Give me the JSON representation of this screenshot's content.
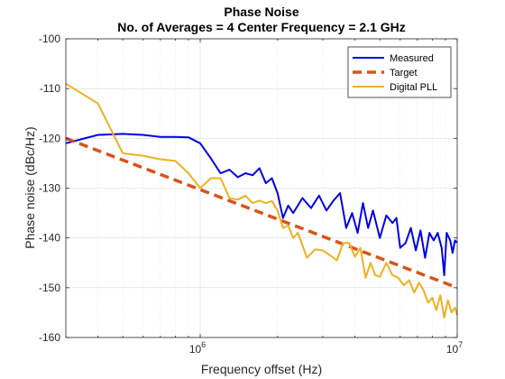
{
  "chart_data": {
    "type": "line",
    "title": "Phase Noise",
    "subtitle": "No. of Averages = 4 Center Frequency = 2.1 GHz",
    "xlabel": "Frequency offset (Hz)",
    "ylabel": "Phase noise (dBc/Hz)",
    "xscale": "log",
    "xlim": [
      300000,
      10000000
    ],
    "ylim": [
      -160,
      -100
    ],
    "yticks": [
      -160,
      -150,
      -140,
      -130,
      -120,
      -110,
      -100
    ],
    "ytick_labels": [
      "-160",
      "-150",
      "-140",
      "-130",
      "-120",
      "-110",
      "-100"
    ],
    "xticks": [
      1000000,
      10000000
    ],
    "xtick_labels": [
      {
        "base": "10",
        "exp": "6"
      },
      {
        "base": "10",
        "exp": "7"
      }
    ],
    "grid": true,
    "legend_position": "top-right",
    "series": [
      {
        "name": "Measured",
        "color": "#0000e6",
        "style": "solid",
        "points": [
          [
            300000,
            -121
          ],
          [
            400000,
            -119.3
          ],
          [
            500000,
            -119.1
          ],
          [
            600000,
            -119.3
          ],
          [
            700000,
            -119.7
          ],
          [
            800000,
            -119.7
          ],
          [
            900000,
            -119.8
          ],
          [
            1000000,
            -121
          ],
          [
            1100000,
            -124
          ],
          [
            1200000,
            -127
          ],
          [
            1300000,
            -126.3
          ],
          [
            1400000,
            -127.8
          ],
          [
            1500000,
            -127
          ],
          [
            1600000,
            -127.4
          ],
          [
            1700000,
            -126
          ],
          [
            1800000,
            -129
          ],
          [
            1900000,
            -128
          ],
          [
            2000000,
            -131
          ],
          [
            2100000,
            -136
          ],
          [
            2200000,
            -133.5
          ],
          [
            2300000,
            -135
          ],
          [
            2500000,
            -132
          ],
          [
            2700000,
            -134
          ],
          [
            2900000,
            -131.5
          ],
          [
            3100000,
            -134.5
          ],
          [
            3300000,
            -132.5
          ],
          [
            3500000,
            -131
          ],
          [
            3700000,
            -138
          ],
          [
            3900000,
            -135
          ],
          [
            4100000,
            -139
          ],
          [
            4300000,
            -133
          ],
          [
            4500000,
            -138
          ],
          [
            4700000,
            -134.5
          ],
          [
            5000000,
            -140
          ],
          [
            5300000,
            -135.5
          ],
          [
            5600000,
            -137
          ],
          [
            5800000,
            -136
          ],
          [
            6000000,
            -142
          ],
          [
            6300000,
            -141
          ],
          [
            6600000,
            -138
          ],
          [
            6900000,
            -142.5
          ],
          [
            7200000,
            -138.5
          ],
          [
            7500000,
            -144
          ],
          [
            7800000,
            -139
          ],
          [
            8100000,
            -140.5
          ],
          [
            8400000,
            -139
          ],
          [
            8700000,
            -142
          ],
          [
            8900000,
            -147.5
          ],
          [
            9100000,
            -139
          ],
          [
            9400000,
            -140.5
          ],
          [
            9600000,
            -143
          ],
          [
            9800000,
            -140.5
          ],
          [
            10000000,
            -141
          ]
        ]
      },
      {
        "name": "Target",
        "color": "#d95319",
        "style": "dashed",
        "points": [
          [
            300000,
            -120
          ],
          [
            10000000,
            -150
          ]
        ]
      },
      {
        "name": "Digital PLL",
        "color": "#edb120",
        "style": "solid",
        "points": [
          [
            300000,
            -109
          ],
          [
            400000,
            -113
          ],
          [
            500000,
            -123
          ],
          [
            600000,
            -123.5
          ],
          [
            700000,
            -124.2
          ],
          [
            800000,
            -124.5
          ],
          [
            900000,
            -127
          ],
          [
            1000000,
            -130
          ],
          [
            1100000,
            -128
          ],
          [
            1200000,
            -128
          ],
          [
            1300000,
            -132
          ],
          [
            1400000,
            -132.3
          ],
          [
            1500000,
            -131.5
          ],
          [
            1600000,
            -133
          ],
          [
            1700000,
            -132.5
          ],
          [
            1800000,
            -133
          ],
          [
            1900000,
            -132.6
          ],
          [
            2000000,
            -134.5
          ],
          [
            2100000,
            -138
          ],
          [
            2200000,
            -137.5
          ],
          [
            2300000,
            -140
          ],
          [
            2400000,
            -139
          ],
          [
            2500000,
            -141.5
          ],
          [
            2600000,
            -144
          ],
          [
            2800000,
            -142.3
          ],
          [
            3000000,
            -142.5
          ],
          [
            3200000,
            -143.5
          ],
          [
            3400000,
            -144.5
          ],
          [
            3600000,
            -141
          ],
          [
            3800000,
            -141
          ],
          [
            4000000,
            -143.8
          ],
          [
            4200000,
            -142
          ],
          [
            4400000,
            -148
          ],
          [
            4600000,
            -145
          ],
          [
            4800000,
            -147.5
          ],
          [
            5000000,
            -147.8
          ],
          [
            5300000,
            -145
          ],
          [
            5600000,
            -147.5
          ],
          [
            5900000,
            -148
          ],
          [
            6200000,
            -149.5
          ],
          [
            6500000,
            -148.5
          ],
          [
            6800000,
            -151
          ],
          [
            7100000,
            -149
          ],
          [
            7400000,
            -150.5
          ],
          [
            7700000,
            -153
          ],
          [
            8000000,
            -152
          ],
          [
            8300000,
            -154.5
          ],
          [
            8600000,
            -151.5
          ],
          [
            8900000,
            -156
          ],
          [
            9200000,
            -152.5
          ],
          [
            9500000,
            -155
          ],
          [
            9800000,
            -154
          ],
          [
            10000000,
            -155.5
          ]
        ]
      }
    ]
  }
}
